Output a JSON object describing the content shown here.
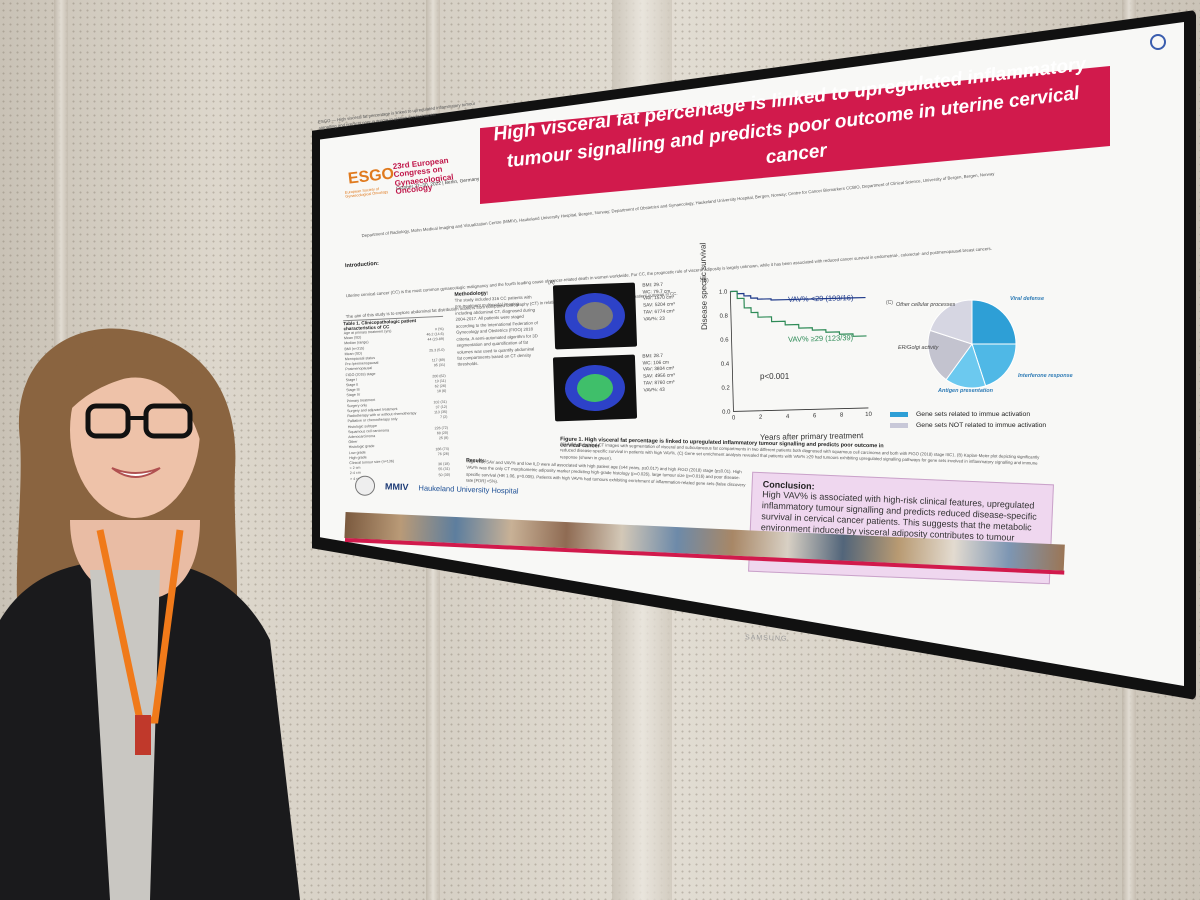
{
  "poster": {
    "topline": "ESGO — High visceral fat percentage is linked to upregulated inflammatory tumour signalling and predicts poor outcome in uterine cervical cancer",
    "title": "High visceral fat percentage is linked to upregulated inflammatory tumour signalling and predicts poor outcome in uterine cervical cancer",
    "esgo_logo": "ESGO",
    "esgo_sub": "European Society of Gynaecological Oncology",
    "congress": "23rd European Congress on Gynaecological Oncology",
    "congress_date": "October 27–30, 2022 | Berlin, Germany",
    "authors": "Department of Radiology, Mohn Medical Imaging and Visualization Centre (MMIV), Haukeland University Hospital, Bergen, Norway; Department of Obstetrics and Gynaecology, Haukeland University Hospital, Bergen, Norway; Centre for Cancer Biomarkers CCBIO, Department of Clinical Science, University of Bergen, Bergen, Norway",
    "intro_head": "Introduction:",
    "intro": "Uterine cervical cancer (CC) is the most common gynaecologic malignancy and the fourth leading cause of cancer-related death in women worldwide. For CC, the prognostic role of visceral adiposity is largely unknown, while it has been associated with reduced cancer survival in endometrial-, colorectal- and postmenopausal breast cancers.",
    "aim": "The aim of this study is to explore abdominal fat distribution markers from computed tomography (CT) in relation to clinicopathologic characteristics and patient outcome in CC.",
    "table_title": "Table 1. Clinicopathologic patient characteristics of CC",
    "table_rows": [
      {
        "k": "Age at primary treatment (yrs)",
        "v": "n (%)"
      },
      {
        "k": "Mean (SD)",
        "v": "46.2 (14.6)"
      },
      {
        "k": "Median (range)",
        "v": "44 (23-89)"
      },
      {
        "k": "BMI (n=315)",
        "v": ""
      },
      {
        "k": "Mean (SD)",
        "v": "25.3 (5.0)"
      },
      {
        "k": "Menopausal status",
        "v": ""
      },
      {
        "k": "Pre-/perimenopausal",
        "v": "117 (69)"
      },
      {
        "k": "Postmenopausal",
        "v": "95 (31)"
      },
      {
        "k": "FIGO (2018) stage",
        "v": ""
      },
      {
        "k": "Stage I",
        "v": "200 (62)"
      },
      {
        "k": "Stage II",
        "v": "19 (11)"
      },
      {
        "k": "Stage III",
        "v": "62 (26)"
      },
      {
        "k": "Stage IV",
        "v": "18 (6)"
      },
      {
        "k": "Primary treatment",
        "v": ""
      },
      {
        "k": "Surgery only",
        "v": "102 (31)"
      },
      {
        "k": "Surgery and adjuvant treatment",
        "v": "37 (12)"
      },
      {
        "k": "Radiotherapy with or without chemotherapy",
        "v": "113 (35)"
      },
      {
        "k": "Palliative or chemotherapy only",
        "v": "7 (2)"
      },
      {
        "k": "Histologic subtype",
        "v": ""
      },
      {
        "k": "Squamous cell carcinoma",
        "v": "226 (72)"
      },
      {
        "k": "Adenocarcinoma",
        "v": "60 (20)"
      },
      {
        "k": "Other",
        "v": "25 (8)"
      },
      {
        "k": "Histologic grade",
        "v": ""
      },
      {
        "k": "Low grade",
        "v": "186 (74)"
      },
      {
        "k": "High grade",
        "v": "76 (26)"
      },
      {
        "k": "Clinical tumour size (n=136)",
        "v": ""
      },
      {
        "k": "< 2 cm",
        "v": "36 (18)"
      },
      {
        "k": "2-4 cm",
        "v": "55 (31)"
      },
      {
        "k": "> 4 cm",
        "v": "50 (30)"
      }
    ],
    "methods_head": "Methodology:",
    "methods": "The study included 316 CC patients with pre-treatment multimodal imaging, including abdominal CT, diagnosed during 2004-2017. All patients were staged according to the International Federation of Gynecology and Obstetrics (FIGO) 2018 criteria. A semi-automated algorithm for 3D segmentation and quantification of fat volumes was used to quantify abdominal fat compartments based on CT density thresholds.",
    "ct1": [
      "BMI: 29.7",
      "WC: 79.7 cm",
      "VAV: 1570 cm³",
      "SAV: 5204 cm³",
      "TAV: 6774 cm³",
      "VAV%: 23"
    ],
    "ct2": [
      "BMI: 28.7",
      "WC: 106 cm",
      "VAV: 3804 cm³",
      "SAV: 4956 cm³",
      "TAV: 8760 cm³",
      "VAV%: 43"
    ],
    "panel_a": "(A)",
    "panel_b": "(B)",
    "panel_c": "(C)",
    "fig_caption": "Figure 1. High visceral fat percentage is linked to upregulated inflammatory tumour signalling and predicts poor outcome in cervical cancer",
    "fig_text": "(A) Axial abdominal CT images with segmentation of visceral and subcutaneous fat compartments in two different patients both diagnosed with squamous cell carcinoma and both with FIGO (2018) stage IIIC1. (B) Kaplan-Meier plot depicting significantly reduced disease-specific survival in patients with high VAV%. (C) Gene set enrichment analysis revealed that patients with VAV% ≥29 had tumours exhibiting upregulated signalling pathways for gene sets involved in inflammatory signalling and immune response (shown in green).",
    "results_head": "Results:",
    "results": "High TAV, SAV and VAV% and low ILD were all associated with high patient age (≥44 years, p≤0.017) and high FIGO (2018) stage (p≤0.01). High VAV% was the only CT morphometric adiposity marker predicting high-grade histology (p=0.026), large tumour size (p=0.016) and poor disease-specific survival (HR 1.06, p=0.005). Patients with high VAV% had tumours exhibiting enrichment of inflammation-related gene sets (false discovery rate [FDR] <5%).",
    "conclusion_head": "Conclusion:",
    "conclusion": "High VAV% is associated with high-risk clinical features, upregulated inflammatory tumour signalling and predicts reduced disease-specific survival in cervical cancer patients. This suggests that the metabolic environment induced by visceral adiposity contributes to tumour progression in cervical cancer.",
    "logo_cmmiv": "MMIV",
    "logo_haukeland": "Haukeland University Hospital",
    "tv_brand": "SAMSUNG"
  },
  "chart_data": [
    {
      "type": "line",
      "title": "",
      "xlabel": "Years after primary treatment",
      "ylabel": "Disease specific survival",
      "xlim": [
        0,
        10
      ],
      "ylim": [
        0.0,
        1.0
      ],
      "x_ticks": [
        0,
        2,
        4,
        6,
        8,
        10
      ],
      "y_ticks": [
        0.0,
        0.2,
        0.4,
        0.6,
        0.8,
        1.0
      ],
      "annotation": "p<0.001",
      "series": [
        {
          "name": "VAV% <29 (193/16)",
          "color": "#1f3a8a",
          "x": [
            0,
            0.5,
            1,
            1.5,
            2,
            3,
            4,
            5,
            6,
            7,
            8,
            9,
            10
          ],
          "y": [
            1.0,
            0.98,
            0.96,
            0.94,
            0.93,
            0.92,
            0.92,
            0.92,
            0.92,
            0.92,
            0.92,
            0.92,
            0.92
          ]
        },
        {
          "name": "VAV% ≥29 (123/39)",
          "color": "#2e8b57",
          "x": [
            0,
            0.5,
            1,
            1.5,
            2,
            3,
            4,
            5,
            6,
            7,
            8,
            9,
            10
          ],
          "y": [
            1.0,
            0.94,
            0.86,
            0.82,
            0.78,
            0.74,
            0.71,
            0.68,
            0.66,
            0.64,
            0.62,
            0.6,
            0.6
          ]
        }
      ]
    },
    {
      "type": "pie",
      "title": "",
      "slices": [
        {
          "label": "Viral defense",
          "value": 25,
          "color": "#2e9fd6"
        },
        {
          "label": "Interferone response",
          "value": 20,
          "color": "#4fb8e6"
        },
        {
          "label": "Antigen presentation",
          "value": 15,
          "color": "#6cc9ef"
        },
        {
          "label": "ER/Golgi activity",
          "value": 20,
          "color": "#c3c3cf"
        },
        {
          "label": "Other cellular processes",
          "value": 20,
          "color": "#d6d6e2"
        }
      ],
      "legend": [
        {
          "label": "Gene sets related to immue activation",
          "color": "#2e9fd6"
        },
        {
          "label": "Gene sets NOT related to immue activation",
          "color": "#c8c8d8"
        }
      ]
    }
  ]
}
